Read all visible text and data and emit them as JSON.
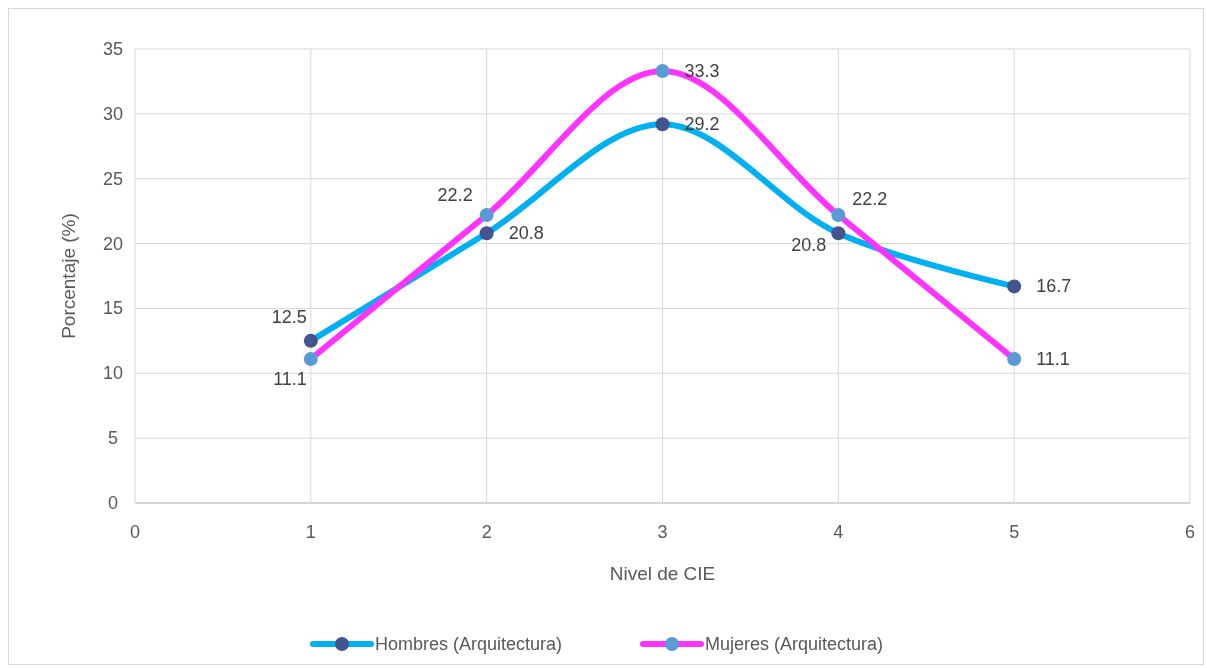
{
  "chart_data": {
    "type": "line",
    "xlabel": "Nivel de CIE",
    "ylabel": "Porcentaje (%)",
    "x": [
      1,
      2,
      3,
      4,
      5
    ],
    "series": [
      {
        "name": "Hombres (Arquitectura)",
        "color": "#00b0f0",
        "values": [
          12.5,
          20.8,
          29.2,
          20.8,
          16.7
        ]
      },
      {
        "name": "Mujeres (Arquitectura)",
        "color": "#ff33ff",
        "values": [
          11.1,
          22.2,
          33.3,
          22.2,
          11.1
        ]
      }
    ],
    "xlim": [
      0,
      6
    ],
    "xticks": [
      0,
      1,
      2,
      3,
      4,
      5,
      6
    ],
    "ylim": [
      0,
      35
    ],
    "yticks": [
      0,
      5,
      10,
      15,
      20,
      25,
      30,
      35
    ],
    "grid": true,
    "legend": "bottom",
    "marker": "circle",
    "line_style": "solid",
    "data_labels": true
  }
}
